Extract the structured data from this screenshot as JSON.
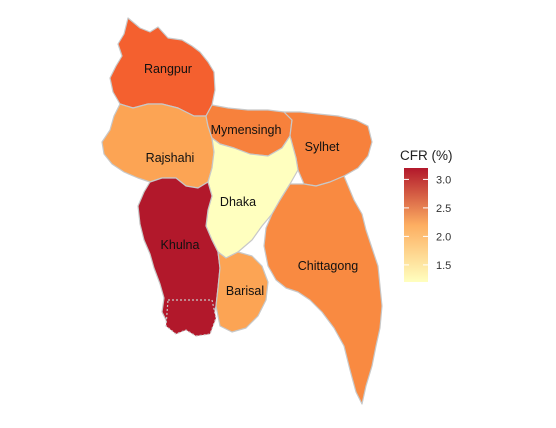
{
  "map": {
    "regions": [
      {
        "key": "rangpur",
        "name": "Rangpur",
        "cfr": 2.75
      },
      {
        "key": "rajshahi",
        "name": "Rajshahi",
        "cfr": 2.35
      },
      {
        "key": "mymensingh",
        "name": "Mymensingh",
        "cfr": 2.55
      },
      {
        "key": "sylhet",
        "name": "Sylhet",
        "cfr": 2.55
      },
      {
        "key": "dhaka",
        "name": "Dhaka",
        "cfr": 1.2
      },
      {
        "key": "khulna",
        "name": "Khulna",
        "cfr": 3.15
      },
      {
        "key": "barisal",
        "name": "Barisal",
        "cfr": 2.3
      },
      {
        "key": "chittagong",
        "name": "Chittagong",
        "cfr": 2.5
      }
    ]
  },
  "legend": {
    "title": "CFR (%)",
    "min": 1.2,
    "max": 3.2,
    "ticks": [
      "3.0",
      "2.5",
      "2.0",
      "1.5"
    ],
    "tick_values": [
      3.0,
      2.5,
      2.0,
      1.5
    ],
    "color_low": "#ffffbf",
    "color_mid": "#fdae61",
    "color_high": "#b2182b"
  },
  "colors": {
    "rangpur": "#f4602f",
    "rajshahi": "#fca454",
    "mymensingh": "#f7813c",
    "sylhet": "#f7813c",
    "dhaka": "#ffffbf",
    "khulna": "#b2182b",
    "barisal": "#fca454",
    "chittagong": "#f98a41",
    "border": "#c8c8c8"
  }
}
